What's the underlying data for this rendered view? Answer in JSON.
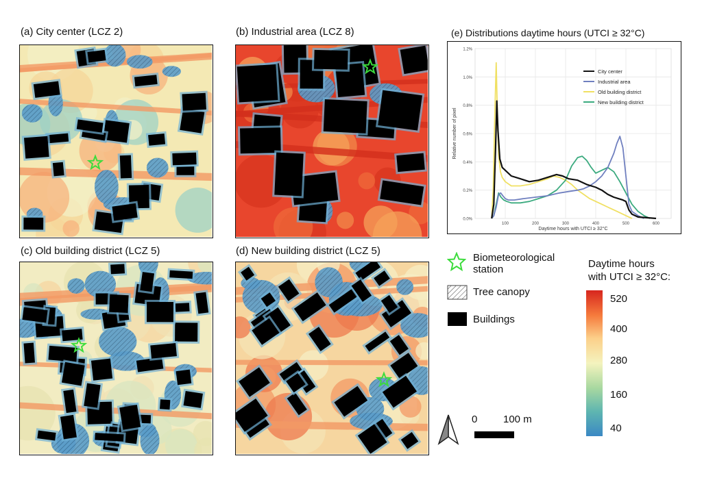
{
  "panels": [
    {
      "label": "(a) City center (LCZ 2)",
      "kind": "city"
    },
    {
      "label": "(b) Industrial area (LCZ 8)",
      "kind": "industrial"
    },
    {
      "label": "(c) Old building district (LCZ 5)",
      "kind": "old"
    },
    {
      "label": "(d) New building district (LCZ 5)",
      "kind": "new"
    }
  ],
  "legend": {
    "station_label": "Biometeorological station",
    "tree_label": "Tree canopy",
    "buildings_label": "Buildings",
    "colorbar_title_1": "Daytime hours",
    "colorbar_title_2": "with UTCI ≥ 32°C:",
    "colorbar_ticks": [
      "520",
      "400",
      "280",
      "160",
      "40"
    ],
    "scale_zero": "0",
    "scale_length": "100 m",
    "colorbar_colors": [
      "#d7261e",
      "#f57a3c",
      "#fcd08a",
      "#f4f3be",
      "#a8d8a0",
      "#5fb6b0",
      "#3b88c4"
    ]
  },
  "chart_data": {
    "type": "line",
    "title": "(e) Distributions daytime hours  (UTCI ≥ 32°C)",
    "xlabel": "Daytime hours with UTCI ≥ 32°C",
    "ylabel": "Relative number of pixel",
    "xlim": [
      0,
      650
    ],
    "ylim": [
      0,
      1.2
    ],
    "xticks": [
      100,
      200,
      300,
      400,
      500,
      600
    ],
    "yticks": [
      0,
      0.2,
      0.4,
      0.6,
      0.8,
      1.0,
      1.2
    ],
    "ytick_labels": [
      "0.0%",
      "0.2%",
      "0.4%",
      "0.6%",
      "0.8%",
      "1.0%",
      "1.2%"
    ],
    "grid": true,
    "legend_position": "top-right",
    "series": [
      {
        "name": "City center",
        "color": "#111111",
        "x": [
          55,
          62,
          68,
          72,
          76,
          82,
          90,
          100,
          120,
          150,
          180,
          210,
          240,
          270,
          290,
          310,
          340,
          370,
          400,
          420,
          440,
          460,
          475,
          490,
          500,
          510,
          520,
          540,
          600
        ],
        "y": [
          0,
          0.1,
          0.5,
          0.83,
          0.62,
          0.42,
          0.36,
          0.34,
          0.3,
          0.28,
          0.26,
          0.27,
          0.29,
          0.31,
          0.3,
          0.28,
          0.27,
          0.24,
          0.22,
          0.2,
          0.17,
          0.15,
          0.14,
          0.13,
          0.12,
          0.06,
          0.03,
          0.01,
          0
        ]
      },
      {
        "name": "Industrial area",
        "color": "#6f7fbf",
        "x": [
          55,
          62,
          70,
          78,
          85,
          92,
          100,
          110,
          130,
          160,
          200,
          240,
          280,
          310,
          340,
          360,
          380,
          400,
          420,
          440,
          460,
          470,
          480,
          490,
          500,
          505,
          510,
          520,
          540,
          560
        ],
        "y": [
          0,
          0.02,
          0.08,
          0.17,
          0.18,
          0.16,
          0.14,
          0.13,
          0.13,
          0.14,
          0.15,
          0.16,
          0.18,
          0.19,
          0.2,
          0.21,
          0.23,
          0.26,
          0.3,
          0.36,
          0.46,
          0.53,
          0.58,
          0.5,
          0.3,
          0.2,
          0.1,
          0.05,
          0.02,
          0
        ]
      },
      {
        "name": "Old building district",
        "color": "#f0e062",
        "x": [
          55,
          60,
          65,
          70,
          74,
          78,
          84,
          90,
          100,
          120,
          150,
          180,
          210,
          240,
          260,
          280,
          300,
          320,
          340,
          360,
          380,
          400,
          420,
          440,
          460,
          480,
          500,
          520
        ],
        "y": [
          0,
          0.2,
          0.7,
          1.1,
          0.72,
          0.45,
          0.33,
          0.29,
          0.26,
          0.23,
          0.23,
          0.24,
          0.26,
          0.28,
          0.3,
          0.29,
          0.27,
          0.24,
          0.2,
          0.17,
          0.14,
          0.12,
          0.1,
          0.08,
          0.06,
          0.04,
          0.02,
          0
        ]
      },
      {
        "name": "New building district",
        "color": "#3aaa7e",
        "x": [
          55,
          62,
          70,
          78,
          86,
          95,
          105,
          120,
          150,
          180,
          210,
          240,
          270,
          300,
          320,
          340,
          355,
          370,
          385,
          400,
          420,
          440,
          460,
          480,
          500,
          520,
          540,
          560,
          580
        ],
        "y": [
          0,
          0.02,
          0.1,
          0.18,
          0.15,
          0.13,
          0.12,
          0.11,
          0.11,
          0.12,
          0.14,
          0.16,
          0.2,
          0.27,
          0.37,
          0.43,
          0.44,
          0.41,
          0.36,
          0.32,
          0.34,
          0.36,
          0.33,
          0.26,
          0.18,
          0.1,
          0.05,
          0.02,
          0
        ]
      }
    ]
  }
}
